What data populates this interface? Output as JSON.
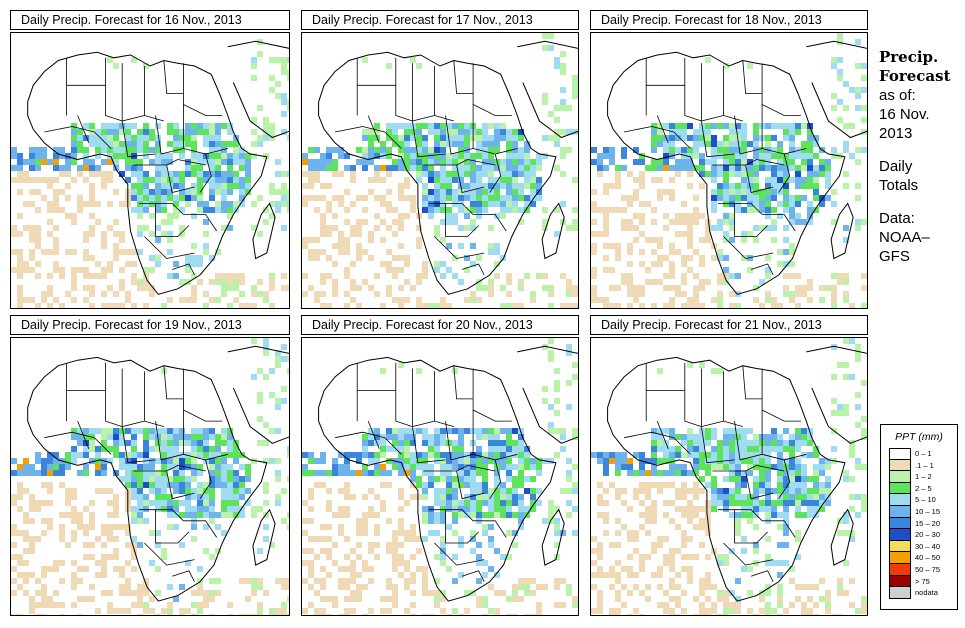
{
  "panels": [
    {
      "title": "Daily Precip. Forecast for  16 Nov., 2013",
      "seed": 11
    },
    {
      "title": "Daily Precip. Forecast for  17 Nov., 2013",
      "seed": 23
    },
    {
      "title": "Daily Precip. Forecast for  18 Nov., 2013",
      "seed": 37
    },
    {
      "title": "Daily Precip. Forecast for  19 Nov., 2013",
      "seed": 41
    },
    {
      "title": "Daily Precip. Forecast for  20 Nov., 2013",
      "seed": 53
    },
    {
      "title": "Daily Precip. Forecast for  21 Nov., 2013",
      "seed": 67
    }
  ],
  "sidebar": {
    "title_line1": "Precip.",
    "title_line2": "Forecast",
    "asof_label": "as of:",
    "date_line1": "16 Nov.",
    "date_line2": "2013",
    "totals_line1": "Daily",
    "totals_line2": "Totals",
    "data_line1": "Data:",
    "data_line2": "NOAA–",
    "data_line3": "GFS"
  },
  "legend": {
    "title": "PPT (mm)",
    "items": [
      {
        "label": "0 – 1",
        "color": "#ffffff"
      },
      {
        "label": ".1 – 1",
        "color": "#f0d9b5"
      },
      {
        "label": "1 – 2",
        "color": "#b9f2a8"
      },
      {
        "label": "2 – 5",
        "color": "#5ee35c"
      },
      {
        "label": "5 – 10",
        "color": "#9fdcf2"
      },
      {
        "label": "10 – 15",
        "color": "#6fb3ec"
      },
      {
        "label": "15 – 20",
        "color": "#3b86dc"
      },
      {
        "label": "20 – 30",
        "color": "#1f4fc7"
      },
      {
        "label": "30 – 40",
        "color": "#f7dc5c"
      },
      {
        "label": "40 – 50",
        "color": "#f5a000"
      },
      {
        "label": "50 – 75",
        "color": "#f03a0a"
      },
      {
        "label": "> 75",
        "color": "#9a0000"
      },
      {
        "label": "nodata",
        "color": "#cfcfcf"
      }
    ]
  }
}
